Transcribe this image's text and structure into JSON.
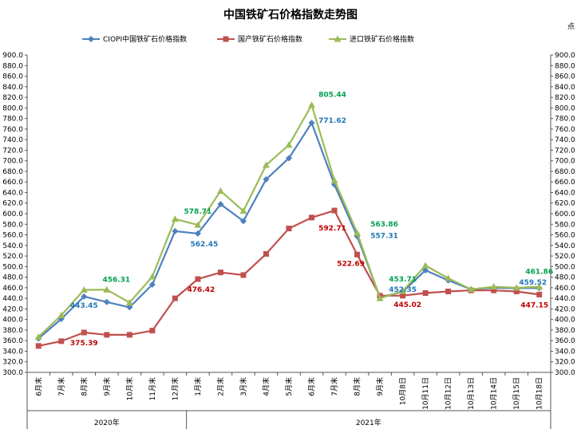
{
  "chart_data": {
    "type": "line",
    "title": "中国铁矿石价格指数走势图",
    "corner_label": "点",
    "categories": [
      "6月末",
      "7月末",
      "8月末",
      "9月末",
      "10月末",
      "11月末",
      "12月末",
      "1月末",
      "2月末",
      "3月末",
      "4月末",
      "5月末",
      "6月末",
      "7月末",
      "8月末",
      "9月末",
      "10月8日",
      "10月11日",
      "10月12日",
      "10月13日",
      "10月14日",
      "10月15日",
      "10月18日"
    ],
    "year_groups": [
      {
        "label": "2020年",
        "start": 0,
        "end": 6
      },
      {
        "label": "2021年",
        "start": 7,
        "end": 22
      }
    ],
    "ylim": [
      300,
      900
    ],
    "ystep": 20,
    "y_tick_labels": [
      "300.0",
      "320.0",
      "340.0",
      "360.0",
      "380.0",
      "400.0",
      "420.0",
      "440.0",
      "460.0",
      "480.0",
      "500.0",
      "520.0",
      "540.0",
      "560.0",
      "580.0",
      "600.0",
      "620.0",
      "640.0",
      "660.0",
      "680.0",
      "700.0",
      "720.0",
      "740.0",
      "760.0",
      "780.0",
      "800.0",
      "820.0",
      "840.0",
      "860.0",
      "880.0",
      "900.0"
    ],
    "grid": false,
    "legend_position": "top",
    "series": [
      {
        "name": "CIOPI中国铁矿石价格指数",
        "color": "#4f81bd",
        "marker": "diamond",
        "values": [
          364,
          401,
          443.45,
          433,
          423,
          466,
          567,
          562.45,
          618,
          586,
          665,
          705,
          771.62,
          655,
          557.31,
          442,
          452.35,
          493,
          474,
          457,
          460,
          459,
          459.52
        ]
      },
      {
        "name": "国产铁矿石价格指数",
        "color": "#c0504d",
        "marker": "square",
        "values": [
          350,
          359,
          375.39,
          371,
          371,
          379,
          440,
          476.42,
          489,
          484,
          524,
          572,
          592.71,
          606,
          522.69,
          445,
          445.02,
          450,
          453,
          455,
          455,
          453,
          447.15
        ]
      },
      {
        "name": "进口铁矿石价格指数",
        "color": "#9bbb59",
        "marker": "triangle",
        "values": [
          367,
          408,
          456,
          456.31,
          432,
          481,
          590,
          578.71,
          643,
          605,
          692,
          730,
          805.44,
          663,
          563.86,
          440,
          453.71,
          502,
          478,
          457,
          462,
          460,
          461.86
        ]
      }
    ],
    "annotations": [
      {
        "series": 0,
        "index": 2,
        "text": "443.45",
        "color": "#1f77b4"
      },
      {
        "series": 2,
        "index": 3,
        "text": "456.31",
        "color": "#00a050"
      },
      {
        "series": 1,
        "index": 2,
        "text": "375.39",
        "color": "#c00000"
      },
      {
        "series": 2,
        "index": 7,
        "text": "578.71",
        "color": "#00a050"
      },
      {
        "series": 0,
        "index": 7,
        "text": "562.45",
        "color": "#1f77b4"
      },
      {
        "series": 1,
        "index": 7,
        "text": "476.42",
        "color": "#c00000"
      },
      {
        "series": 2,
        "index": 12,
        "text": "805.44",
        "color": "#00a050"
      },
      {
        "series": 0,
        "index": 12,
        "text": "771.62",
        "color": "#1f77b4"
      },
      {
        "series": 1,
        "index": 12,
        "text": "592.71",
        "color": "#c00000"
      },
      {
        "series": 2,
        "index": 14,
        "text": "563.86",
        "color": "#00a050"
      },
      {
        "series": 0,
        "index": 14,
        "text": "557.31",
        "color": "#1f77b4"
      },
      {
        "series": 1,
        "index": 14,
        "text": "522.69",
        "color": "#c00000"
      },
      {
        "series": 2,
        "index": 16,
        "text": "453.71",
        "color": "#00a050"
      },
      {
        "series": 0,
        "index": 16,
        "text": "452.35",
        "color": "#1f77b4"
      },
      {
        "series": 1,
        "index": 16,
        "text": "445.02",
        "color": "#c00000"
      },
      {
        "series": 2,
        "index": 22,
        "text": "461.86",
        "color": "#00a050"
      },
      {
        "series": 0,
        "index": 22,
        "text": "459.52",
        "color": "#1f77b4"
      },
      {
        "series": 1,
        "index": 22,
        "text": "447.15",
        "color": "#c00000"
      }
    ]
  }
}
